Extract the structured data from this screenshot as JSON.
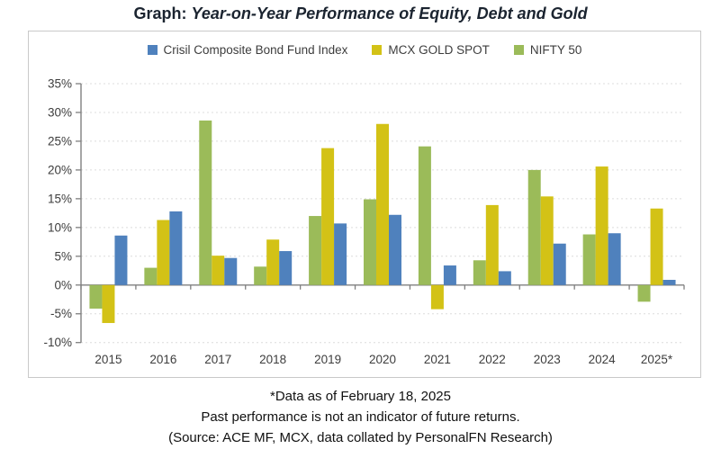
{
  "header": {
    "title_prefix": "Graph:",
    "title_main": "Year-on-Year Performance of Equity, Debt and Gold"
  },
  "chart_data": {
    "type": "bar",
    "title": "Graph: Year-on-Year Performance of Equity, Debt and Gold",
    "xlabel": "",
    "ylabel": "",
    "categories": [
      "2015",
      "2016",
      "2017",
      "2018",
      "2019",
      "2020",
      "2021",
      "2022",
      "2023",
      "2024",
      "2025*"
    ],
    "series": [
      {
        "name": "Crisil Composite Bond Fund Index",
        "color": "#4f81bd",
        "values": [
          8.6,
          12.8,
          4.7,
          5.9,
          10.7,
          12.2,
          3.4,
          2.4,
          7.2,
          9.0,
          0.9
        ]
      },
      {
        "name": "MCX GOLD SPOT",
        "color": "#d3c216",
        "values": [
          -6.6,
          11.3,
          5.1,
          7.9,
          23.8,
          28.0,
          -4.2,
          13.9,
          15.4,
          20.6,
          13.3
        ]
      },
      {
        "name": "NIFTY 50",
        "color": "#9bbb59",
        "values": [
          -4.1,
          3.0,
          28.6,
          3.2,
          12.0,
          14.9,
          24.1,
          4.3,
          20.0,
          8.8,
          -2.9
        ]
      }
    ],
    "bar_plot_order_within_group": [
      "NIFTY 50",
      "MCX GOLD SPOT",
      "Crisil Composite Bond Fund Index"
    ],
    "ylim": [
      -10,
      35
    ],
    "ytick_step": 5,
    "yticks": [
      "35%",
      "30%",
      "25%",
      "20%",
      "15%",
      "10%",
      "5%",
      "0%",
      "-5%",
      "-10%"
    ],
    "grid": "dashed-horizontal",
    "legend_position": "top-center"
  },
  "footnotes": {
    "line1": "*Data as of February 18, 2025",
    "line2": "Past performance is not an indicator of future returns.",
    "line3": "(Source: ACE MF, MCX, data collated by PersonalFN Research)"
  }
}
